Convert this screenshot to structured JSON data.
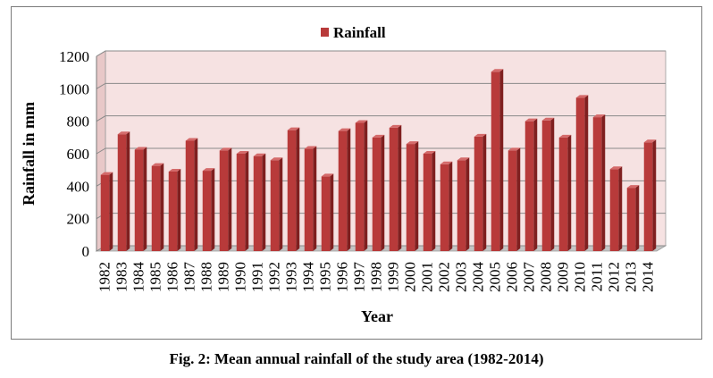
{
  "figure": {
    "caption": "Fig. 2: Mean annual rainfall  of the study area (1982-2014)"
  },
  "colors": {
    "bar_front": "#b83a3a",
    "bar_side": "#7f1f1f",
    "bar_top": "#d46a6a",
    "plot_back": "#f6e2e2",
    "plot_floor": "#c4c4c4",
    "gridline": "#8a8a8a"
  },
  "chart_data": {
    "type": "bar",
    "title": "",
    "xlabel": "Year",
    "ylabel": "Rainfall  in mm",
    "ylim": [
      0,
      1200
    ],
    "yticks": [
      0,
      200,
      400,
      600,
      800,
      1000,
      1200
    ],
    "grid": true,
    "legend_position": "top-center",
    "categories": [
      "1982",
      "1983",
      "1984",
      "1985",
      "1986",
      "1987",
      "1988",
      "1989",
      "1990",
      "1991",
      "1992",
      "1993",
      "1994",
      "1995",
      "1996",
      "1997",
      "1998",
      "1999",
      "2000",
      "2001",
      "2002",
      "2003",
      "2004",
      "2005",
      "2006",
      "2007",
      "2008",
      "2009",
      "2010",
      "2011",
      "2012",
      "2013",
      "2014"
    ],
    "series": [
      {
        "name": "Rainfall",
        "values": [
          470,
          720,
          625,
          525,
          490,
          680,
          495,
          620,
          600,
          585,
          560,
          745,
          630,
          460,
          740,
          790,
          700,
          760,
          660,
          600,
          535,
          560,
          705,
          1105,
          620,
          800,
          805,
          700,
          945,
          825,
          505,
          390,
          670
        ]
      }
    ]
  }
}
